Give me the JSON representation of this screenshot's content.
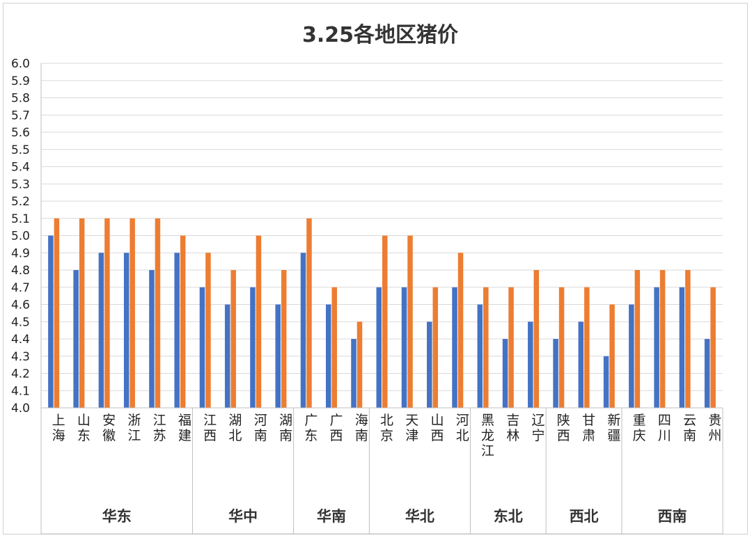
{
  "chart_data": {
    "type": "bar",
    "title": "3.25各地区猪价",
    "xlabel": "",
    "ylabel": "",
    "ylim": [
      4.0,
      6.0
    ],
    "ytick_step": 0.1,
    "grid": true,
    "colors": [
      "#4472C4",
      "#ED7D31"
    ],
    "categories": [
      "上海",
      "山东",
      "安徽",
      "浙江",
      "江苏",
      "福建",
      "江西",
      "湖北",
      "河南",
      "湖南",
      "广东",
      "广西",
      "海南",
      "北京",
      "天津",
      "山西",
      "河北",
      "黑龙江",
      "吉林",
      "辽宁",
      "陕西",
      "甘肃",
      "新疆",
      "重庆",
      "四川",
      "云南",
      "贵州"
    ],
    "groups": [
      {
        "name": "华东",
        "count": 6
      },
      {
        "name": "华中",
        "count": 4
      },
      {
        "name": "华南",
        "count": 3
      },
      {
        "name": "华北",
        "count": 4
      },
      {
        "name": "东北",
        "count": 3
      },
      {
        "name": "西北",
        "count": 3
      },
      {
        "name": "西南",
        "count": 4
      }
    ],
    "series": [
      {
        "values": [
          5.0,
          4.8,
          4.9,
          4.9,
          4.8,
          4.9,
          4.7,
          4.6,
          4.7,
          4.6,
          4.9,
          4.6,
          4.4,
          4.7,
          4.7,
          4.5,
          4.7,
          4.6,
          4.4,
          4.5,
          4.4,
          4.5,
          4.3,
          4.6,
          4.7,
          4.7,
          4.4
        ]
      },
      {
        "values": [
          5.1,
          5.1,
          5.1,
          5.1,
          5.1,
          5.0,
          4.9,
          4.8,
          5.0,
          4.8,
          5.1,
          4.7,
          4.5,
          5.0,
          5.0,
          4.7,
          4.9,
          4.7,
          4.7,
          4.8,
          4.7,
          4.7,
          4.6,
          4.8,
          4.8,
          4.8,
          4.7
        ]
      }
    ]
  }
}
